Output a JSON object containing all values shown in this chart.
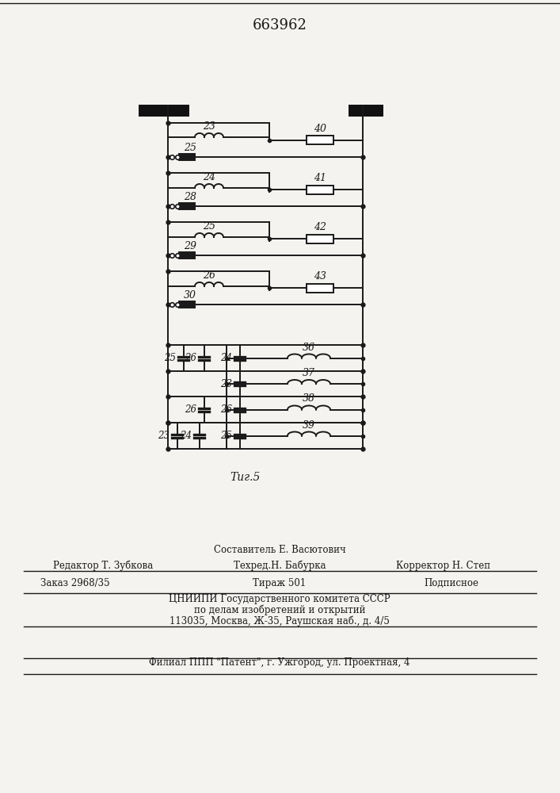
{
  "title": "663962",
  "fig_label": "Τиг.5",
  "background_color": "#f5f3f0",
  "line_color": "#1a1a1a",
  "line_width": 1.4,
  "footer": {
    "line1_center": "Составитель Е. Васютович",
    "line2_left": "Редактор Т. Зубкова",
    "line2_center": "Техред.Н. Бабурка",
    "line2_right": "Корректор Н. Степ",
    "line3_left": "Заказ 2968/35",
    "line3_center": "Тираж 501",
    "line3_right": "Подписное",
    "line4": "ЦНИИПИ Государственного комитета СССР",
    "line5": "по делам изобретений и открытий",
    "line6": "113035, Москва, Ж-35, Раушская наб., д. 4/5",
    "line7": "Филиал ППП \"Патент\", г. Ужгород, ул. Проектная, 4"
  }
}
